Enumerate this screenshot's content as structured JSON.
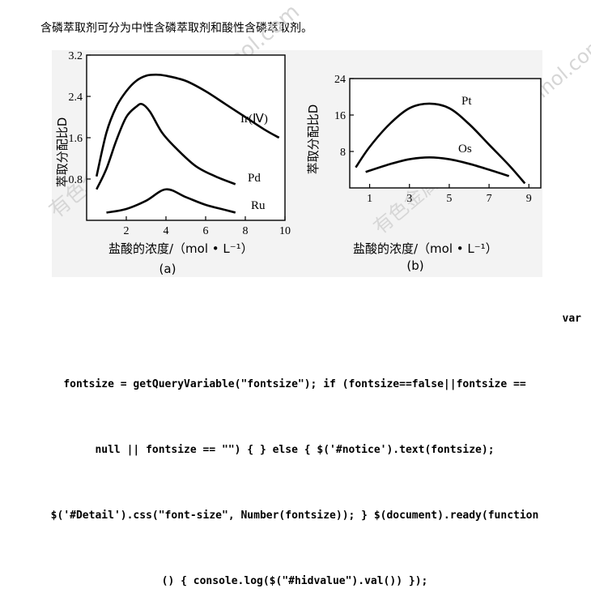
{
  "intro_text": "含磷萃取剂可分为中性含磷萃取剂和酸性含磷萃取剂。",
  "watermark": "有色金属在线 www.cnmnol.com",
  "code": {
    "line1": "var",
    "line2": "fontsize = getQueryVariable(\"fontsize\"); if (fontsize==false||fontsize ==",
    "line3": "null || fontsize == \"\") { } else { $('#notice').text(fontsize);",
    "line4": "$('#Detail').css(\"font-size\", Number(fontsize)); } $(document).ready(function",
    "line5": "() { console.log($(\"#hidvalue\").val()) });"
  },
  "chart_data": [
    {
      "type": "line",
      "caption": "(a)",
      "xlabel": "盐酸的浓度/（mol • L⁻¹）",
      "ylabel": "萃取分配比D",
      "xlim": [
        0,
        10
      ],
      "ylim": [
        0,
        3.2
      ],
      "xticks": [
        2,
        4,
        6,
        8,
        10
      ],
      "yticks": [
        0.8,
        1.6,
        2.4,
        3.2
      ],
      "ytick_labels": [
        "0.8",
        "1.6",
        "2.4",
        "3.2"
      ],
      "series": [
        {
          "name": "Ir(Ⅳ)",
          "x": [
            0.5,
            1.0,
            1.5,
            2.0,
            2.5,
            3.0,
            3.5,
            4.0,
            5.0,
            6.0,
            7.0,
            8.0,
            9.0,
            9.7
          ],
          "y": [
            0.85,
            1.7,
            2.2,
            2.5,
            2.7,
            2.8,
            2.82,
            2.8,
            2.7,
            2.5,
            2.25,
            2.0,
            1.75,
            1.6
          ]
        },
        {
          "name": "Pd",
          "x": [
            0.5,
            1.0,
            1.5,
            2.0,
            2.5,
            2.8,
            3.2,
            3.8,
            4.5,
            5.5,
            6.5,
            7.5
          ],
          "y": [
            0.6,
            1.0,
            1.55,
            2.0,
            2.2,
            2.25,
            2.1,
            1.7,
            1.4,
            1.05,
            0.85,
            0.7
          ]
        },
        {
          "name": "Ru",
          "x": [
            1.0,
            2.0,
            3.0,
            4.0,
            5.0,
            6.0,
            7.0,
            7.5
          ],
          "y": [
            0.15,
            0.22,
            0.38,
            0.6,
            0.45,
            0.3,
            0.2,
            0.15
          ]
        }
      ]
    },
    {
      "type": "line",
      "caption": "(b)",
      "xlabel": "盐酸的浓度/（mol • L⁻¹）",
      "ylabel": "萃取分配比D",
      "xlim": [
        0,
        9.6
      ],
      "ylim": [
        0,
        24
      ],
      "xticks": [
        1,
        3,
        5,
        7,
        9
      ],
      "yticks": [
        8,
        16,
        24
      ],
      "series": [
        {
          "name": "Pt",
          "x": [
            0.3,
            1.0,
            2.0,
            3.0,
            4.0,
            5.0,
            6.0,
            7.0,
            8.0,
            8.8
          ],
          "y": [
            4.5,
            9.0,
            14.0,
            17.5,
            18.5,
            17.5,
            14.0,
            9.5,
            5.0,
            1.0
          ]
        },
        {
          "name": "Os",
          "x": [
            0.8,
            2.0,
            3.0,
            4.0,
            5.0,
            6.0,
            7.0,
            8.0
          ],
          "y": [
            3.5,
            5.2,
            6.3,
            6.7,
            6.3,
            5.3,
            4.0,
            2.6
          ]
        }
      ]
    }
  ]
}
